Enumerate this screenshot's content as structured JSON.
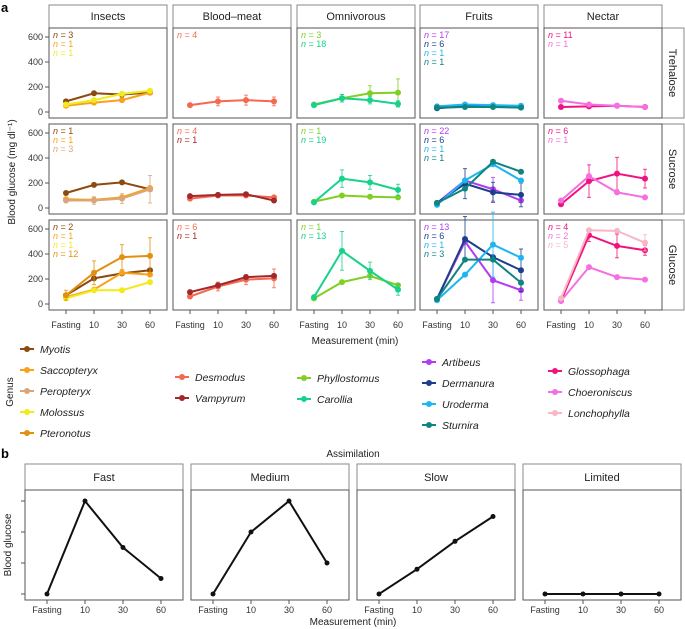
{
  "chart_data": [
    {
      "type": "line",
      "panel_label": "a",
      "ylabel": "Blood glucose (mg dl⁻¹)",
      "xlabel": "Measurement (min)",
      "legend_title": "Genus",
      "categories": [
        "Fasting",
        "10",
        "30",
        "60"
      ],
      "yticks": [
        0,
        200,
        400,
        600
      ],
      "ylim": [
        -50,
        670
      ],
      "columns": [
        "Insects",
        "Blood–meat",
        "Omnivorous",
        "Fruits",
        "Nectar"
      ],
      "rows": [
        "Trehalose",
        "Sucrose",
        "Glucose"
      ],
      "genus_colors": {
        "Myotis": "#8b4a0f",
        "Saccopteryx": "#f7a21b",
        "Peropteryx": "#dba57a",
        "Molossus": "#f2ea1a",
        "Pteronotus": "#e2900f",
        "Desmodus": "#f4694f",
        "Vampyrum": "#a3282b",
        "Phyllostomus": "#80cf22",
        "Carollia": "#16d28a",
        "Artibeus": "#b23cf0",
        "Dermanura": "#1c3f8c",
        "Uroderma": "#1fb5f0",
        "Sturnira": "#0f8580",
        "Glossophaga": "#f0137e",
        "Choeroniscus": "#f56fe0",
        "Lonchophylla": "#f8b6c6"
      },
      "legend": [
        [
          "Myotis",
          "Saccopteryx",
          "Peropteryx",
          "Molossus",
          "Pteronotus"
        ],
        [
          "Desmodus",
          "Vampyrum"
        ],
        [
          "Phyllostomus",
          "Carollia"
        ],
        [
          "Artibeus",
          "Dermanura",
          "Uroderma",
          "Sturnira"
        ],
        [
          "Glossophaga",
          "Choeroniscus",
          "Lonchophylla"
        ]
      ],
      "panels": [
        {
          "column": 0,
          "row": 0,
          "n_labels": [
            [
              "n = 3",
              "Myotis"
            ],
            [
              "n = 1",
              "Saccopteryx"
            ],
            [
              "n = 1",
              "Molossus"
            ]
          ],
          "series": [
            {
              "genus": "Myotis",
              "values": [
                85,
                150,
                140,
                155
              ],
              "err": [
                0,
                0,
                20,
                0
              ]
            },
            {
              "genus": "Saccopteryx",
              "values": [
                50,
                75,
                95,
                155
              ],
              "err": [
                0,
                0,
                0,
                0
              ]
            },
            {
              "genus": "Molossus",
              "values": [
                60,
                95,
                145,
                170
              ],
              "err": [
                0,
                0,
                0,
                0
              ]
            }
          ]
        },
        {
          "column": 1,
          "row": 0,
          "n_labels": [
            [
              "n = 4",
              "Desmodus"
            ]
          ],
          "series": [
            {
              "genus": "Desmodus",
              "values": [
                55,
                85,
                95,
                85
              ],
              "err": [
                0,
                35,
                40,
                35
              ]
            }
          ]
        },
        {
          "column": 2,
          "row": 0,
          "n_labels": [
            [
              "n = 3",
              "Phyllostomus"
            ],
            [
              "n = 18",
              "Carollia"
            ]
          ],
          "series": [
            {
              "genus": "Phyllostomus",
              "values": [
                60,
                110,
                150,
                155
              ],
              "err": [
                0,
                30,
                60,
                110
              ]
            },
            {
              "genus": "Carollia",
              "values": [
                55,
                110,
                95,
                65
              ],
              "err": [
                0,
                30,
                30,
                25
              ]
            }
          ]
        },
        {
          "column": 3,
          "row": 0,
          "n_labels": [
            [
              "n = 17",
              "Artibeus"
            ],
            [
              "n = 6",
              "Dermanura"
            ],
            [
              "n = 1",
              "Uroderma"
            ],
            [
              "n = 1",
              "Sturnira"
            ]
          ],
          "series": [
            {
              "genus": "Artibeus",
              "values": [
                40,
                55,
                50,
                45
              ],
              "err": [
                0,
                0,
                0,
                0
              ]
            },
            {
              "genus": "Dermanura",
              "values": [
                30,
                45,
                45,
                40
              ],
              "err": [
                0,
                0,
                0,
                0
              ]
            },
            {
              "genus": "Uroderma",
              "values": [
                45,
                60,
                55,
                50
              ],
              "err": [
                0,
                0,
                0,
                0
              ]
            },
            {
              "genus": "Sturnira",
              "values": [
                35,
                40,
                40,
                35
              ],
              "err": [
                0,
                0,
                0,
                0
              ]
            }
          ]
        },
        {
          "column": 4,
          "row": 0,
          "n_labels": [
            [
              "n = 11",
              "Glossophaga"
            ],
            [
              "n = 1",
              "Choeroniscus"
            ]
          ],
          "series": [
            {
              "genus": "Glossophaga",
              "values": [
                40,
                45,
                50,
                40
              ],
              "err": [
                0,
                0,
                0,
                0
              ]
            },
            {
              "genus": "Choeroniscus",
              "values": [
                90,
                60,
                50,
                40
              ],
              "err": [
                0,
                0,
                0,
                0
              ]
            }
          ]
        },
        {
          "column": 0,
          "row": 1,
          "n_labels": [
            [
              "n = 1",
              "Myotis"
            ],
            [
              "n = 1",
              "Saccopteryx"
            ],
            [
              "n = 3",
              "Peropteryx"
            ]
          ],
          "series": [
            {
              "genus": "Myotis",
              "values": [
                120,
                185,
                205,
                150
              ],
              "err": [
                0,
                0,
                0,
                0
              ]
            },
            {
              "genus": "Saccopteryx",
              "values": [
                70,
                65,
                85,
                160
              ],
              "err": [
                0,
                0,
                0,
                0
              ]
            },
            {
              "genus": "Peropteryx",
              "values": [
                60,
                60,
                75,
                150
              ],
              "err": [
                0,
                30,
                40,
                110
              ]
            }
          ]
        },
        {
          "column": 1,
          "row": 1,
          "n_labels": [
            [
              "n = 4",
              "Desmodus"
            ],
            [
              "n = 1",
              "Vampyrum"
            ]
          ],
          "series": [
            {
              "genus": "Desmodus",
              "values": [
                75,
                100,
                100,
                85
              ],
              "err": [
                0,
                0,
                0,
                0
              ]
            },
            {
              "genus": "Vampyrum",
              "values": [
                95,
                105,
                110,
                60
              ],
              "err": [
                0,
                0,
                0,
                0
              ]
            }
          ]
        },
        {
          "column": 2,
          "row": 1,
          "n_labels": [
            [
              "n = 1",
              "Phyllostomus"
            ],
            [
              "n = 19",
              "Carollia"
            ]
          ],
          "series": [
            {
              "genus": "Phyllostomus",
              "values": [
                50,
                100,
                90,
                85
              ],
              "err": [
                0,
                0,
                0,
                0
              ]
            },
            {
              "genus": "Carollia",
              "values": [
                45,
                235,
                205,
                145
              ],
              "err": [
                0,
                70,
                55,
                45
              ]
            }
          ]
        },
        {
          "column": 3,
          "row": 1,
          "n_labels": [
            [
              "n = 22",
              "Artibeus"
            ],
            [
              "n = 6",
              "Dermanura"
            ],
            [
              "n = 1",
              "Uroderma"
            ],
            [
              "n = 1",
              "Sturnira"
            ]
          ],
          "series": [
            {
              "genus": "Artibeus",
              "values": [
                40,
                220,
                150,
                60
              ],
              "err": [
                0,
                0,
                95,
                0
              ]
            },
            {
              "genus": "Dermanura",
              "values": [
                40,
                195,
                125,
                105
              ],
              "err": [
                0,
                120,
                80,
                95
              ]
            },
            {
              "genus": "Uroderma",
              "values": [
                25,
                220,
                350,
                220
              ],
              "err": [
                0,
                0,
                0,
                0
              ]
            },
            {
              "genus": "Sturnira",
              "values": [
                40,
                155,
                370,
                290
              ],
              "err": [
                0,
                0,
                0,
                0
              ]
            }
          ]
        },
        {
          "column": 4,
          "row": 1,
          "n_labels": [
            [
              "n = 6",
              "Glossophaga"
            ],
            [
              "n = 1",
              "Choeroniscus"
            ]
          ],
          "series": [
            {
              "genus": "Glossophaga",
              "values": [
                30,
                215,
                275,
                235
              ],
              "err": [
                0,
                130,
                130,
                75
              ]
            },
            {
              "genus": "Choeroniscus",
              "values": [
                60,
                255,
                125,
                85
              ],
              "err": [
                0,
                0,
                0,
                0
              ]
            }
          ]
        },
        {
          "column": 0,
          "row": 2,
          "n_labels": [
            [
              "n = 2",
              "Myotis"
            ],
            [
              "n = 1",
              "Saccopteryx"
            ],
            [
              "n = 1",
              "Molossus"
            ],
            [
              "n = 12",
              "Pteronotus"
            ]
          ],
          "series": [
            {
              "genus": "Myotis",
              "values": [
                70,
                205,
                245,
                270
              ],
              "err": [
                0,
                0,
                0,
                0
              ]
            },
            {
              "genus": "Saccopteryx",
              "values": [
                55,
                115,
                250,
                235
              ],
              "err": [
                0,
                0,
                0,
                0
              ]
            },
            {
              "genus": "Molossus",
              "values": [
                45,
                110,
                110,
                175
              ],
              "err": [
                0,
                0,
                0,
                0
              ]
            },
            {
              "genus": "Pteronotus",
              "values": [
                70,
                250,
                375,
                385
              ],
              "err": [
                40,
                95,
                100,
                145
              ]
            }
          ]
        },
        {
          "column": 1,
          "row": 2,
          "n_labels": [
            [
              "n = 6",
              "Desmodus"
            ],
            [
              "n = 1",
              "Vampyrum"
            ]
          ],
          "series": [
            {
              "genus": "Desmodus",
              "values": [
                60,
                140,
                195,
                205
              ],
              "err": [
                0,
                35,
                40,
                75
              ]
            },
            {
              "genus": "Vampyrum",
              "values": [
                95,
                150,
                215,
                225
              ],
              "err": [
                0,
                0,
                0,
                0
              ]
            }
          ]
        },
        {
          "column": 2,
          "row": 2,
          "n_labels": [
            [
              "n = 1",
              "Phyllostomus"
            ],
            [
              "n = 13",
              "Carollia"
            ]
          ],
          "series": [
            {
              "genus": "Phyllostomus",
              "values": [
                45,
                175,
                225,
                150
              ],
              "err": [
                0,
                0,
                0,
                0
              ]
            },
            {
              "genus": "Carollia",
              "values": [
                55,
                425,
                265,
                115
              ],
              "err": [
                0,
                155,
                70,
                45
              ]
            }
          ]
        },
        {
          "column": 3,
          "row": 2,
          "n_labels": [
            [
              "n = 13",
              "Artibeus"
            ],
            [
              "n = 6",
              "Dermanura"
            ],
            [
              "n = 1",
              "Uroderma"
            ],
            [
              "n = 3",
              "Sturnira"
            ]
          ],
          "series": [
            {
              "genus": "Artibeus",
              "values": [
                40,
                500,
                190,
                110
              ],
              "err": [
                0,
                0,
                180,
                80
              ]
            },
            {
              "genus": "Dermanura",
              "values": [
                40,
                520,
                375,
                270
              ],
              "err": [
                0,
                180,
                0,
                170
              ]
            },
            {
              "genus": "Uroderma",
              "values": [
                30,
                235,
                475,
                370
              ],
              "err": [
                0,
                0,
                260,
                0
              ]
            },
            {
              "genus": "Sturnira",
              "values": [
                40,
                355,
                355,
                170
              ],
              "err": [
                0,
                0,
                0,
                0
              ]
            }
          ]
        },
        {
          "column": 4,
          "row": 2,
          "n_labels": [
            [
              "n = 4",
              "Glossophaga"
            ],
            [
              "n = 2",
              "Choeroniscus"
            ],
            [
              "n = 5",
              "Lonchophylla"
            ]
          ],
          "series": [
            {
              "genus": "Glossophaga",
              "values": [
                25,
                550,
                465,
                430
              ],
              "err": [
                0,
                50,
                95,
                40
              ]
            },
            {
              "genus": "Choeroniscus",
              "values": [
                25,
                295,
                215,
                195
              ],
              "err": [
                0,
                0,
                0,
                0
              ]
            },
            {
              "genus": "Lonchophylla",
              "values": [
                45,
                590,
                585,
                490
              ],
              "err": [
                0,
                0,
                0,
                65
              ]
            }
          ]
        }
      ]
    },
    {
      "type": "line",
      "panel_label": "b",
      "title": "Assimilation",
      "ylabel": "Blood glucose",
      "xlabel": "Measurement (min)",
      "categories": [
        "Fasting",
        "10",
        "30",
        "60"
      ],
      "ylim": [
        0,
        3
      ],
      "color": "#111111",
      "panels": [
        {
          "name": "Fast",
          "values": [
            0,
            3,
            1.5,
            0.5
          ]
        },
        {
          "name": "Medium",
          "values": [
            0,
            2,
            3,
            1
          ]
        },
        {
          "name": "Slow",
          "values": [
            0,
            0.8,
            1.7,
            2.5
          ]
        },
        {
          "name": "Limited",
          "values": [
            0,
            0,
            0,
            0
          ]
        }
      ]
    }
  ]
}
